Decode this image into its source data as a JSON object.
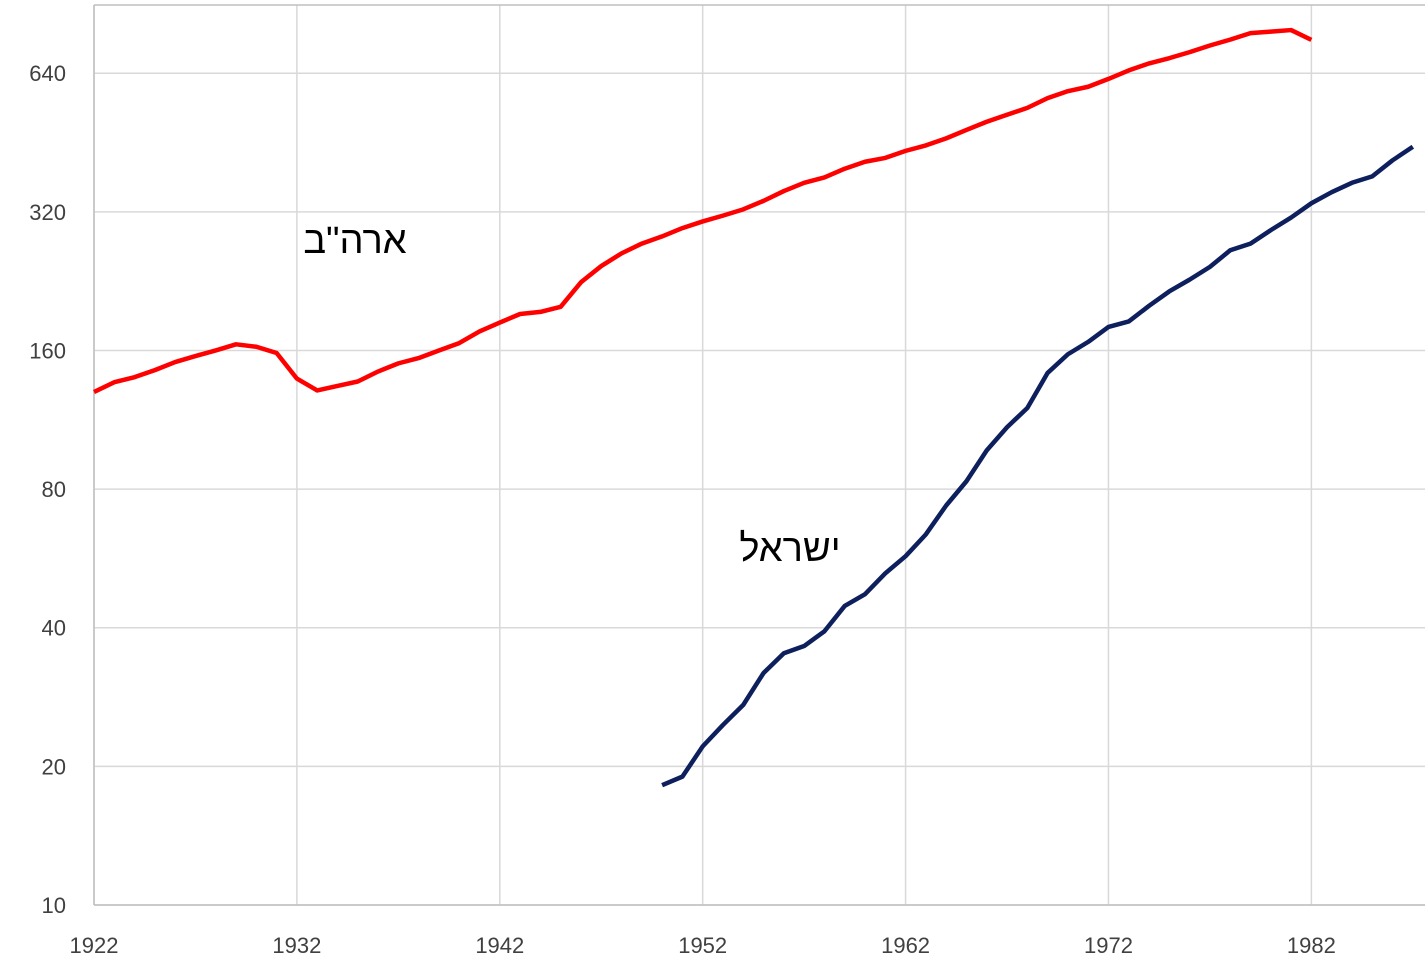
{
  "chart_data": {
    "type": "line",
    "log_scale_y": true,
    "grid": true,
    "xlim": [
      1922,
      1987.6
    ],
    "xticks": [
      1922,
      1932,
      1942,
      1952,
      1962,
      1972,
      1982
    ],
    "ylim": [
      10,
      900
    ],
    "yticks": [
      10,
      20,
      40,
      80,
      160,
      320,
      640
    ],
    "series": [
      {
        "name": "ארה\"ב",
        "color": "#ff0000",
        "x": [
          1922,
          1923,
          1924,
          1925,
          1926,
          1927,
          1928,
          1929,
          1930,
          1931,
          1932,
          1933,
          1934,
          1935,
          1936,
          1937,
          1938,
          1939,
          1940,
          1941,
          1942,
          1943,
          1944,
          1945,
          1946,
          1947,
          1948,
          1949,
          1950,
          1951,
          1952,
          1953,
          1954,
          1955,
          1956,
          1957,
          1958,
          1959,
          1960,
          1961,
          1962,
          1963,
          1964,
          1965,
          1966,
          1967,
          1968,
          1969,
          1970,
          1971,
          1972,
          1973,
          1974,
          1975,
          1976,
          1977,
          1978,
          1979,
          1980,
          1981,
          1982
        ],
        "values": [
          130,
          136.5,
          140,
          145,
          151,
          155.6,
          160,
          165,
          163,
          158,
          139,
          131,
          134,
          137,
          144,
          150,
          154,
          160,
          166,
          176,
          184,
          192,
          194,
          199,
          225,
          244,
          260,
          273,
          283,
          295,
          305,
          314,
          324,
          338,
          355,
          370,
          380,
          397,
          411,
          419,
          434,
          446,
          462,
          482,
          502,
          520,
          538,
          565,
          585,
          598,
          622,
          649,
          672,
          690,
          711,
          735,
          757,
          782,
          788,
          794,
          756
        ]
      },
      {
        "name": "ישראל",
        "color": "#0d1f5c",
        "x": [
          1950,
          1951,
          1952,
          1953,
          1954,
          1955,
          1956,
          1957,
          1958,
          1959,
          1960,
          1961,
          1962,
          1963,
          1964,
          1965,
          1966,
          1967,
          1968,
          1969,
          1970,
          1971,
          1972,
          1973,
          1974,
          1975,
          1976,
          1977,
          1978,
          1979,
          1980,
          1981,
          1982,
          1983,
          1984,
          1985,
          1986,
          1987
        ],
        "values": [
          18.2,
          19,
          22.1,
          24.6,
          27.2,
          31.9,
          35.2,
          36.5,
          39.3,
          44.6,
          47.3,
          52.5,
          57.2,
          63.8,
          73.7,
          83.2,
          97.1,
          109,
          120,
          143,
          157,
          167,
          180,
          185,
          200,
          215,
          228,
          243,
          264,
          273,
          292,
          311,
          334,
          353,
          370,
          382,
          414,
          443
        ]
      }
    ]
  }
}
